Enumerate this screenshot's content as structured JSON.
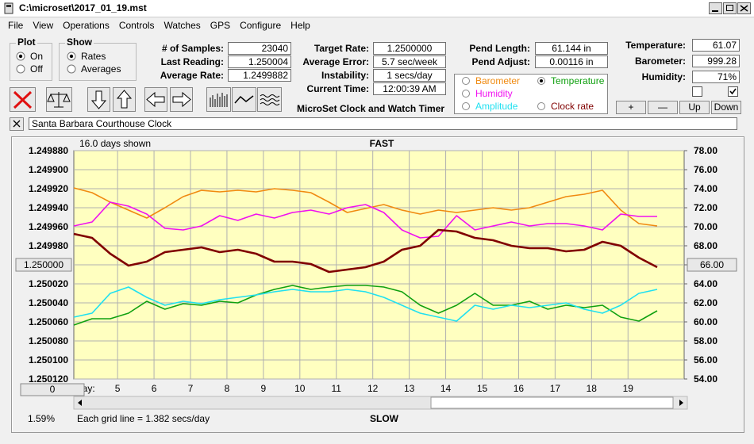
{
  "window": {
    "title": "C:\\microset\\2017_01_19.mst"
  },
  "menu": [
    "File",
    "View",
    "Operations",
    "Controls",
    "Watches",
    "GPS",
    "Configure",
    "Help"
  ],
  "plot_group": {
    "title": "Plot",
    "options": [
      "On",
      "Off"
    ],
    "selected": 0
  },
  "show_group": {
    "title": "Show",
    "options": [
      "Rates",
      "Averages"
    ],
    "selected": 0
  },
  "readouts_left": [
    {
      "label": "# of Samples:",
      "value": "23040"
    },
    {
      "label": "Last Reading:",
      "value": "1.250004"
    },
    {
      "label": "Average Rate:",
      "value": "1.2499882"
    }
  ],
  "readouts_mid": [
    {
      "label": "Target Rate:",
      "value": "1.2500000"
    },
    {
      "label": "Average Error:",
      "value": "5.7 sec/week"
    },
    {
      "label": "Instability:",
      "value": "1 secs/day"
    },
    {
      "label": "Current Time:",
      "value": "12:00:39 AM"
    }
  ],
  "readouts_pend": [
    {
      "label": "Pend Length:",
      "value": "61.144 in"
    },
    {
      "label": "Pend Adjust:",
      "value": "0.00116 in"
    }
  ],
  "readouts_env": [
    {
      "label": "Temperature:",
      "value": "61.07"
    },
    {
      "label": "Barometer:",
      "value": "999.28"
    },
    {
      "label": "Humidity:",
      "value": "71%"
    }
  ],
  "checkboxes": [
    false,
    true
  ],
  "buttons": [
    "+",
    "—",
    "Up",
    "Down"
  ],
  "app_title": "MicroSet Clock and Watch Timer",
  "clock_name": "Santa Barbara Courthouse Clock",
  "chart_data": {
    "type": "line",
    "top_label": "FAST",
    "bottom_label": "SLOW",
    "days_shown": "16.0 days shown",
    "x_label": "Day:",
    "grid_note": "Each grid line = 1.382 secs/day",
    "percent": "1.59%",
    "offset_box": "0",
    "grid": true,
    "legend_selected": 1,
    "xlim": [
      3.8,
      20.54
    ],
    "xticks": [
      5,
      6,
      7,
      8,
      9,
      10,
      11,
      12,
      13,
      14,
      15,
      16,
      17,
      18,
      19
    ],
    "ylim": [
      1.25012,
      1.24988
    ],
    "yticks": [
      {
        "value": 1.24988,
        "label": "1.249880"
      },
      {
        "value": 1.2499,
        "label": "1.249900"
      },
      {
        "value": 1.24992,
        "label": "1.249920"
      },
      {
        "value": 1.24994,
        "label": "1.249940"
      },
      {
        "value": 1.24996,
        "label": "1.249960"
      },
      {
        "value": 1.24998,
        "label": "1.249980"
      },
      {
        "value": 1.25,
        "label": "1.250000"
      },
      {
        "value": 1.25002,
        "label": "1.250020"
      },
      {
        "value": 1.25004,
        "label": "1.250040"
      },
      {
        "value": 1.25006,
        "label": "1.250060"
      },
      {
        "value": 1.25008,
        "label": "1.250080"
      },
      {
        "value": 1.2501,
        "label": "1.250100"
      },
      {
        "value": 1.25012,
        "label": "1.250120"
      }
    ],
    "y2lim": [
      54,
      78
    ],
    "y2ticks": [
      {
        "value": 78,
        "label": "78.00"
      },
      {
        "value": 76,
        "label": "76.00"
      },
      {
        "value": 74,
        "label": "74.00"
      },
      {
        "value": 72,
        "label": "72.00"
      },
      {
        "value": 70,
        "label": "70.00"
      },
      {
        "value": 68,
        "label": "68.00"
      },
      {
        "value": 66,
        "label": "66.00"
      },
      {
        "value": 64,
        "label": "64.00"
      },
      {
        "value": 62,
        "label": "62.00"
      },
      {
        "value": 60,
        "label": "60.00"
      },
      {
        "value": 58,
        "label": "58.00"
      },
      {
        "value": 56,
        "label": "56.00"
      },
      {
        "value": 54,
        "label": "54.00"
      }
    ],
    "x": [
      3.8,
      4.3,
      4.8,
      5.3,
      5.8,
      6.3,
      6.8,
      7.3,
      7.8,
      8.3,
      8.8,
      9.3,
      9.8,
      10.3,
      10.8,
      11.3,
      11.8,
      12.3,
      12.8,
      13.3,
      13.8,
      14.3,
      14.8,
      15.3,
      15.8,
      16.3,
      16.8,
      17.3,
      17.8,
      18.3,
      18.8,
      19.3,
      19.8
    ],
    "series": [
      {
        "name": "Barometer",
        "color": "#f08a10",
        "axis": "y2",
        "values": [
          74.08,
          73.58,
          72.58,
          71.75,
          70.92,
          72.0,
          73.17,
          73.83,
          73.67,
          73.83,
          73.67,
          74.0,
          73.83,
          73.58,
          72.58,
          71.5,
          71.92,
          72.33,
          71.75,
          71.33,
          71.75,
          71.5,
          71.75,
          72.0,
          71.75,
          72.0,
          72.58,
          73.17,
          73.42,
          73.83,
          71.75,
          70.33,
          70.08
        ]
      },
      {
        "name": "Temperature",
        "color": "#10a010",
        "axis": "y2",
        "values": [
          59.67,
          60.33,
          60.33,
          60.92,
          62.17,
          61.33,
          61.92,
          61.75,
          62.17,
          62.0,
          62.83,
          63.42,
          63.83,
          63.42,
          63.67,
          63.83,
          63.83,
          63.67,
          63.17,
          61.75,
          60.92,
          61.75,
          63.0,
          61.75,
          61.75,
          62.17,
          61.33,
          61.75,
          61.5,
          61.75,
          60.5,
          60.08,
          61.17
        ]
      },
      {
        "name": "Humidity",
        "color": "#f010f0",
        "axis": "y2",
        "values": [
          70.08,
          70.5,
          72.58,
          72.17,
          71.33,
          69.83,
          69.67,
          70.08,
          71.17,
          70.67,
          71.33,
          70.92,
          71.5,
          71.75,
          71.33,
          72.0,
          72.33,
          71.5,
          69.67,
          68.83,
          69.0,
          71.17,
          69.67,
          70.08,
          70.5,
          70.08,
          70.33,
          70.33,
          70.08,
          69.67,
          71.33,
          71.08,
          71.08
        ]
      },
      {
        "name": "Amplitude",
        "color": "#20e0f0",
        "axis": "y2",
        "values": [
          60.5,
          60.92,
          63.0,
          63.67,
          62.58,
          61.75,
          62.17,
          61.92,
          62.33,
          62.58,
          62.83,
          63.17,
          63.42,
          63.17,
          63.17,
          63.42,
          63.17,
          62.58,
          61.75,
          60.92,
          60.5,
          60.08,
          61.75,
          61.33,
          61.75,
          61.5,
          61.75,
          62.0,
          61.33,
          60.92,
          61.75,
          63.0,
          63.42
        ]
      },
      {
        "name": "Clock rate",
        "color": "#800000",
        "axis": "y",
        "values": [
          1.2499675,
          1.2499717,
          1.2499883,
          1.2500008,
          1.2499967,
          1.2499867,
          1.2499842,
          1.2499817,
          1.2499867,
          1.2499842,
          1.2499883,
          1.2499967,
          1.2499967,
          1.2499992,
          1.2500075,
          1.250005,
          1.2500025,
          1.2499967,
          1.2499842,
          1.24998,
          1.2499633,
          1.249965,
          1.2499717,
          1.2499742,
          1.24998,
          1.2499825,
          1.2499825,
          1.2499858,
          1.2499842,
          1.2499758,
          1.24998,
          1.2499925,
          1.2500025
        ]
      }
    ]
  }
}
